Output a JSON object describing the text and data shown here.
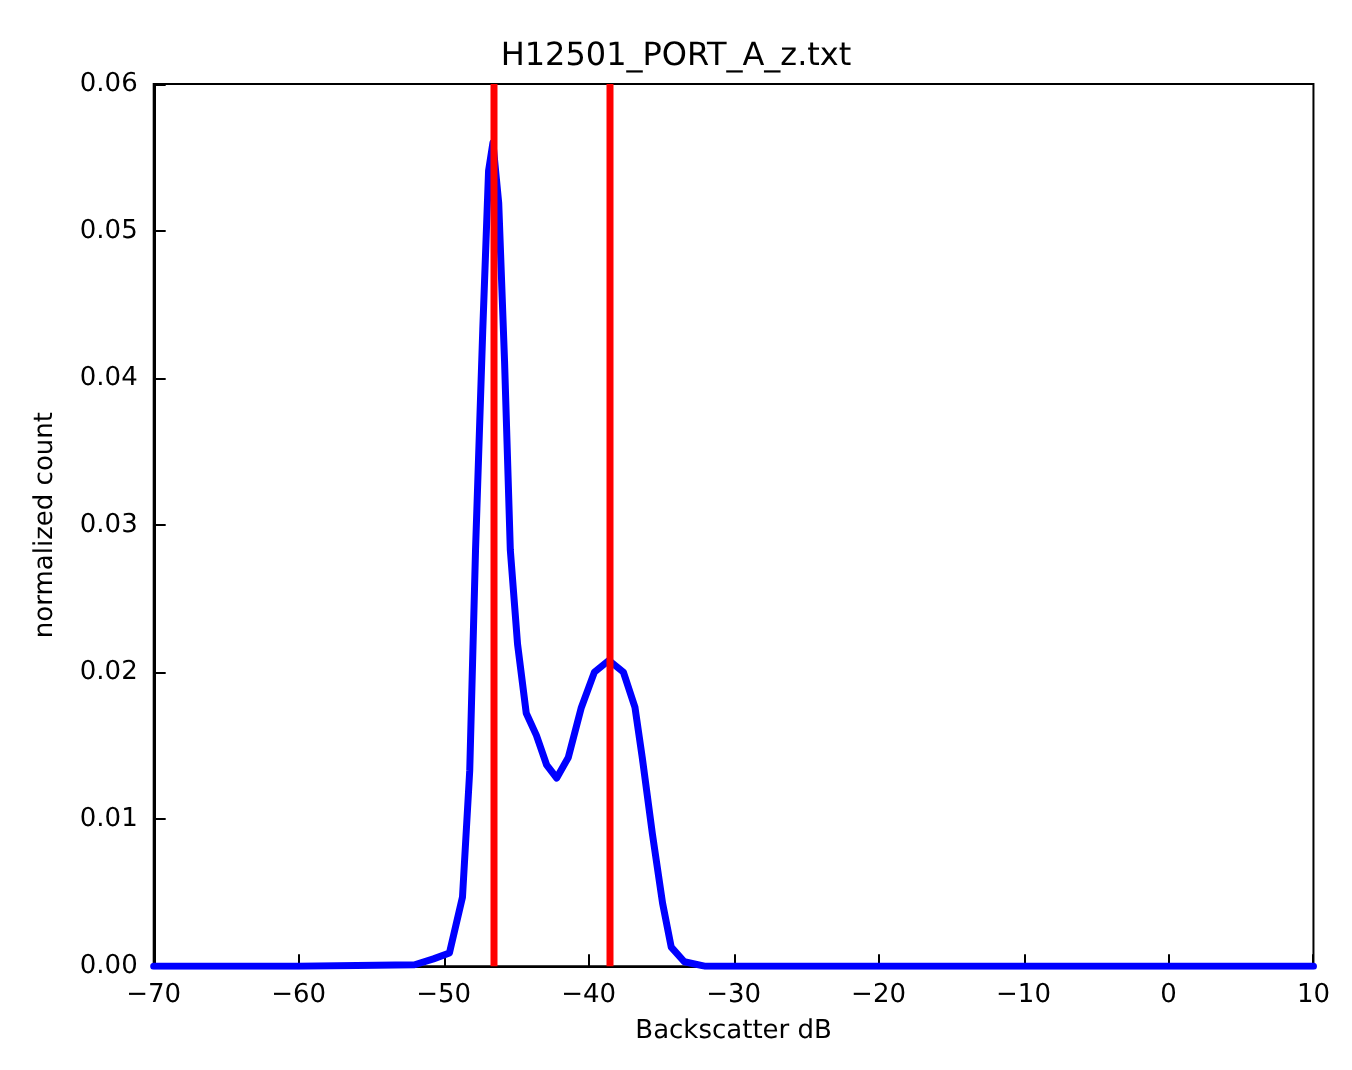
{
  "chart_data": {
    "type": "line",
    "title": "H12501_PORT_A_z.txt",
    "xlabel": "Backscatter dB",
    "ylabel": "normalized count",
    "xlim": [
      -70,
      10
    ],
    "xticks": [
      -70,
      -60,
      -50,
      -40,
      -30,
      -20,
      -10,
      0,
      10
    ],
    "ylim": [
      0,
      0.06
    ],
    "yticks": [
      {
        "value": 0,
        "label": "0.00"
      },
      {
        "value": 0.01,
        "label": "0.01"
      },
      {
        "value": 0.02,
        "label": "0.02"
      },
      {
        "value": 0.03,
        "label": "0.03"
      },
      {
        "value": 0.04,
        "label": "0.04"
      },
      {
        "value": 0.05,
        "label": "0.05"
      },
      {
        "value": 0.06,
        "label": "0.06"
      }
    ],
    "grid": false,
    "marker": "none",
    "line_style": "solid",
    "series": [
      {
        "color": "#0000ff",
        "x": [
          -70,
          -60,
          -52,
          -50.7,
          -49.6,
          -48.7,
          -48.2,
          -47.8,
          -47.3,
          -46.9,
          -46.6,
          -46.2,
          -45.8,
          -45.4,
          -44.9,
          -44.3,
          -43.6,
          -42.9,
          -42.2,
          -41.4,
          -40.5,
          -39.6,
          -38.6,
          -37.6,
          -36.8,
          -36.3,
          -35.6,
          -34.9,
          -34.3,
          -33.4,
          -32,
          -20,
          0,
          10
        ],
        "values": [
          0,
          0,
          0.0001,
          0.0005,
          0.0009,
          0.0047,
          0.0133,
          0.0283,
          0.0433,
          0.0541,
          0.056,
          0.0519,
          0.0412,
          0.0283,
          0.0219,
          0.0172,
          0.0157,
          0.0137,
          0.0128,
          0.0142,
          0.0176,
          0.02,
          0.0208,
          0.02,
          0.0176,
          0.0142,
          0.009,
          0.0043,
          0.0013,
          0.0003,
          0,
          0,
          0,
          0
        ]
      }
    ],
    "ref_lines": [
      {
        "axis": "x",
        "value": -46.6,
        "color": "#ff0000",
        "line_style": "solid"
      },
      {
        "axis": "x",
        "value": -38.6,
        "color": "#ff0000",
        "line_style": "solid"
      }
    ]
  }
}
